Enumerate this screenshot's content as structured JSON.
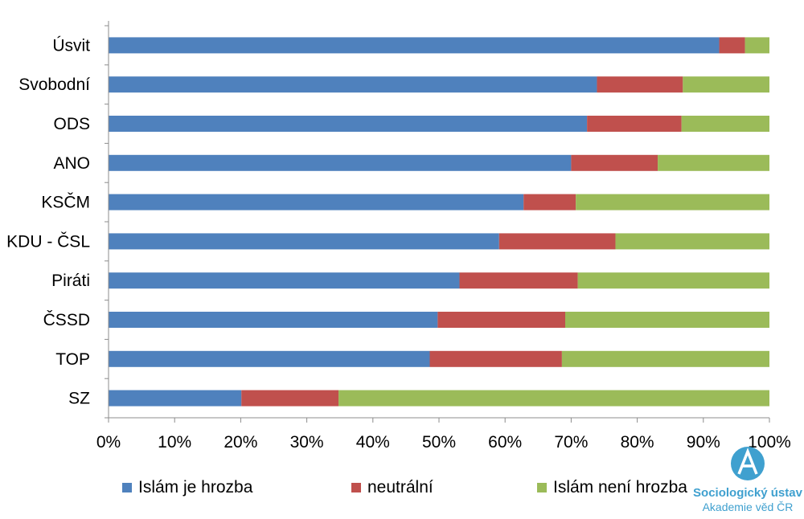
{
  "chart_data": {
    "type": "bar",
    "orientation": "horizontal",
    "stacked": true,
    "percent": true,
    "categories": [
      "Úsvit",
      "Svobodní",
      "ODS",
      "ANO",
      "KSČM",
      "KDU - ČSL",
      "Piráti",
      "ČSSD",
      "TOP",
      "SZ"
    ],
    "series": [
      {
        "name": "Islám je hrozba",
        "color": "#4f81bd",
        "values": [
          92.4,
          73.9,
          72.4,
          70.0,
          62.8,
          59.1,
          53.1,
          49.8,
          48.6,
          20.1
        ]
      },
      {
        "name": "neutrální",
        "color": "#c0504d",
        "values": [
          3.9,
          13.0,
          14.3,
          13.1,
          7.9,
          17.6,
          17.9,
          19.3,
          20.0,
          14.7
        ]
      },
      {
        "name": "Islám není hrozba",
        "color": "#9bbb59",
        "values": [
          3.7,
          13.1,
          13.3,
          16.9,
          29.3,
          23.3,
          29.0,
          30.9,
          31.4,
          65.2
        ]
      }
    ],
    "xlim": [
      0,
      100
    ],
    "xticks": [
      "0%",
      "10%",
      "20%",
      "30%",
      "40%",
      "50%",
      "60%",
      "70%",
      "80%",
      "90%",
      "100%"
    ],
    "grid": false,
    "legend_position": "bottom"
  },
  "logo": {
    "line1": "Sociologický ústav",
    "line2": "Akademie věd ČR",
    "color": "#3fa0cf"
  }
}
